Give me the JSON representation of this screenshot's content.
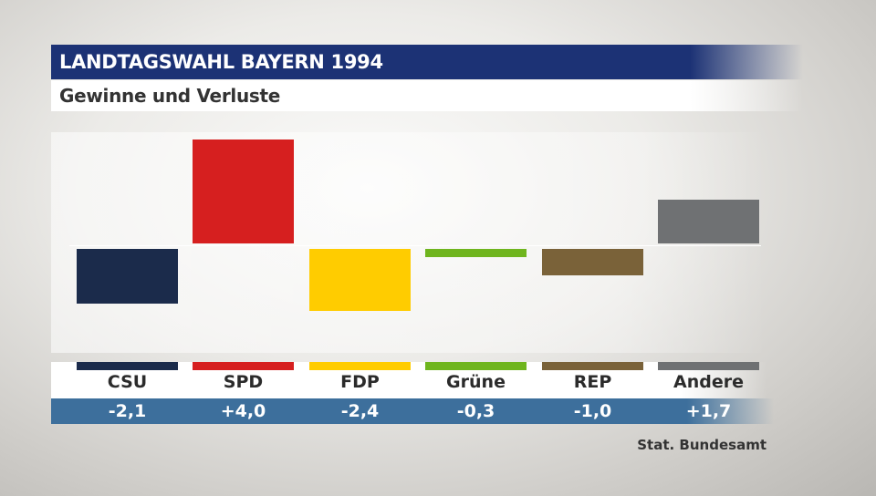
{
  "header": {
    "title": "LANDTAGSWAHL BAYERN 1994",
    "subtitle": "Gewinne und Verluste"
  },
  "source": "Stat. Bundesamt",
  "chart_data": {
    "type": "bar",
    "title": "LANDTAGSWAHL BAYERN 1994",
    "subtitle": "Gewinne und Verluste",
    "categories": [
      "CSU",
      "SPD",
      "FDP",
      "Grüne",
      "REP",
      "Andere"
    ],
    "values": [
      -2.1,
      4.0,
      -2.4,
      -0.3,
      -1.0,
      1.7
    ],
    "value_labels": [
      "-2,1",
      "+4,0",
      "-2,4",
      "-0,3",
      "-1,0",
      "+1,7"
    ],
    "colors": [
      "#1b2b4b",
      "#d61f1f",
      "#ffcc00",
      "#6fb51e",
      "#7a6239",
      "#6f7173"
    ],
    "xlabel": "",
    "ylabel": "",
    "grid": false,
    "legend": "none"
  }
}
